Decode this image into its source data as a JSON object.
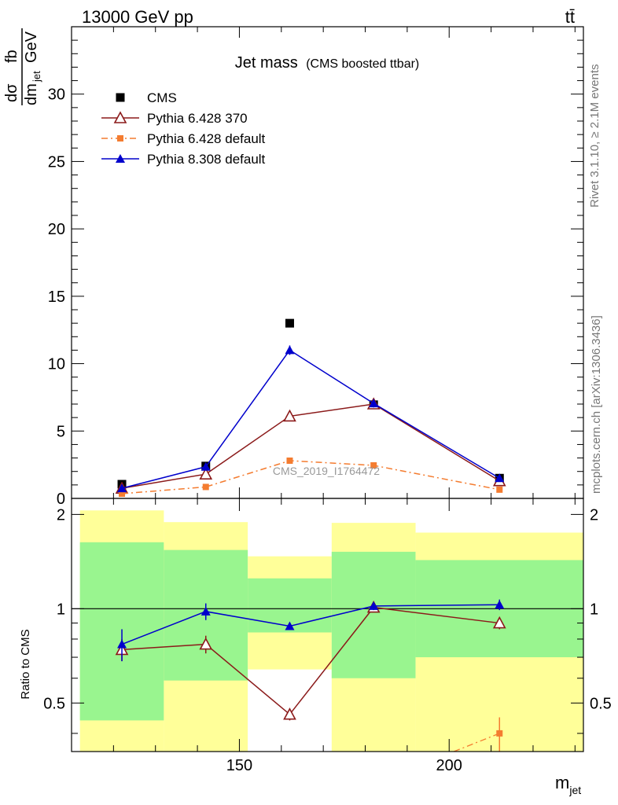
{
  "header": {
    "left": "13000 GeV pp",
    "right": "tt̄"
  },
  "side": {
    "rivet": "Rivet 3.1.10, ≥ 2.1M events",
    "mcplots": "mcplots.cern.ch [arXiv:1306.3436]"
  },
  "chart_data": [
    {
      "type": "line",
      "panel": "main",
      "title": "Jet mass",
      "subtitle": "(CMS boosted ttbar)",
      "analysis_label": "CMS_2019_I1764472",
      "ylabel": {
        "numerator_left": "dσ",
        "numerator_right": "fb",
        "denominator_left": "dm",
        "denominator_sub": "jet",
        "denominator_right": "GeV"
      },
      "xlim": [
        110,
        232
      ],
      "ylim": [
        0,
        35
      ],
      "yticks": [
        {
          "value": 0,
          "label": "0"
        },
        {
          "value": 5,
          "label": "5"
        },
        {
          "value": 10,
          "label": "10"
        },
        {
          "value": 15,
          "label": "15"
        },
        {
          "value": 20,
          "label": "20"
        },
        {
          "value": 25,
          "label": "25"
        },
        {
          "value": 30,
          "label": "30"
        }
      ],
      "legend_position": "top-left",
      "series": [
        {
          "name": "CMS",
          "color": "#000000",
          "marker": "square",
          "x": [
            122,
            142,
            162,
            182,
            212
          ],
          "y": [
            1.05,
            2.4,
            13.0,
            6.95,
            1.5
          ]
        },
        {
          "name": "Pythia 6.428 370",
          "color": "#8b1a1a",
          "marker": "open-triangle",
          "line": "solid",
          "x": [
            122,
            142,
            162,
            182,
            212
          ],
          "y": [
            0.75,
            1.8,
            6.1,
            7.0,
            1.3
          ],
          "err": [
            0.1,
            0.15,
            0.2,
            0.25,
            0.1
          ]
        },
        {
          "name": "Pythia 6.428 default",
          "color": "#f47c30",
          "marker": "square",
          "line": "dashdot",
          "x": [
            122,
            142,
            162,
            182,
            212
          ],
          "y": [
            0.35,
            0.85,
            2.8,
            2.45,
            0.65
          ]
        },
        {
          "name": "Pythia 8.308 default",
          "color": "#0000cc",
          "marker": "triangle",
          "line": "solid",
          "x": [
            122,
            142,
            162,
            182,
            212
          ],
          "y": [
            0.75,
            2.35,
            11.0,
            7.05,
            1.5
          ],
          "err": [
            0.1,
            0.12,
            0.35,
            0.3,
            0.1
          ]
        }
      ]
    },
    {
      "type": "line",
      "panel": "ratio",
      "ylabel": "Ratio to CMS",
      "xlabel": "m",
      "xlabel_sub": "jet",
      "xlim": [
        110,
        232
      ],
      "ylim": [
        0.35,
        2.25
      ],
      "yticks": [
        {
          "value": 0.5,
          "label": "0.5"
        },
        {
          "value": 1,
          "label": "1"
        },
        {
          "value": 2,
          "label": "2"
        }
      ],
      "xticks": [
        {
          "value": 150,
          "label": "150"
        },
        {
          "value": 200,
          "label": "200"
        }
      ],
      "bands": [
        {
          "x0": 112,
          "x1": 132,
          "inner": [
            0.44,
            1.63
          ],
          "outer": [
            0.33,
            2.06
          ]
        },
        {
          "x0": 132,
          "x1": 152,
          "inner": [
            0.59,
            1.54
          ],
          "outer": [
            0.33,
            1.89
          ]
        },
        {
          "x0": 152,
          "x1": 172,
          "inner": [
            0.84,
            1.25
          ],
          "outer": [
            0.64,
            1.47
          ]
        },
        {
          "x0": 172,
          "x1": 192,
          "inner": [
            0.6,
            1.52
          ],
          "outer": [
            0.33,
            1.88
          ]
        },
        {
          "x0": 192,
          "x1": 232,
          "inner": [
            0.7,
            1.43
          ],
          "outer": [
            0.33,
            1.75
          ]
        }
      ],
      "band_colors": {
        "inner": "#99f58f",
        "outer": "#ffff99"
      },
      "series": [
        {
          "name": "Pythia 6.428 370",
          "color": "#8b1a1a",
          "marker": "open-triangle",
          "x": [
            122,
            142,
            162,
            182,
            212
          ],
          "y": [
            0.74,
            0.77,
            0.46,
            1.01,
            0.9
          ],
          "err": [
            0.06,
            0.05,
            0.02,
            0.03,
            0.04
          ]
        },
        {
          "name": "Pythia 6.428 default",
          "color": "#f47c30",
          "marker": "square",
          "x": [
            212
          ],
          "y": [
            0.4
          ],
          "err": [
            0.05
          ]
        },
        {
          "name": "Pythia 8.308 default",
          "color": "#0000cc",
          "marker": "triangle",
          "x": [
            122,
            142,
            162,
            182,
            212
          ],
          "y": [
            0.77,
            0.98,
            0.88,
            1.02,
            1.03
          ],
          "err": [
            0.09,
            0.06,
            0.02,
            0.03,
            0.04
          ]
        }
      ]
    }
  ]
}
